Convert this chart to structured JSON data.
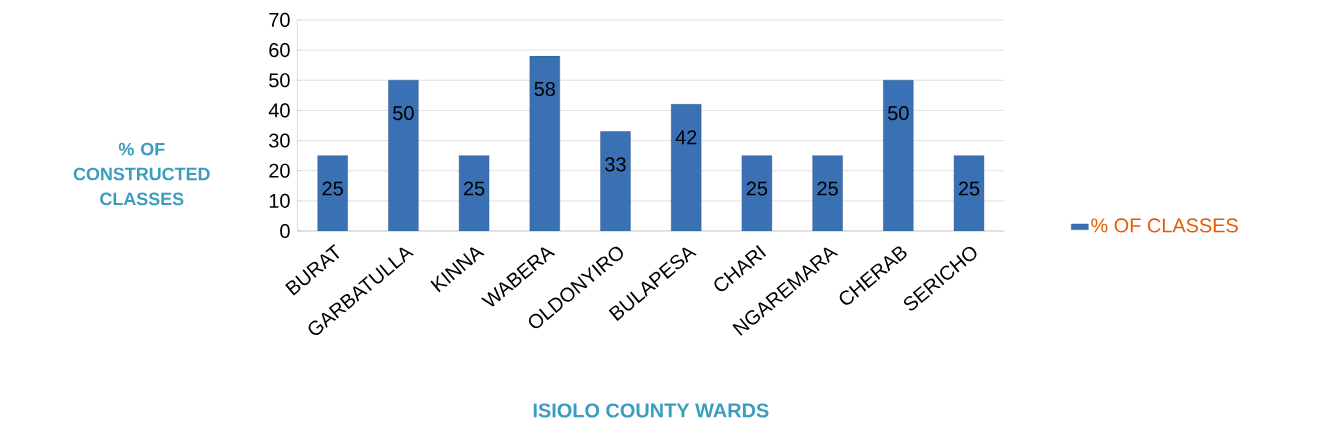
{
  "chart_data": {
    "type": "bar",
    "xlabel": "ISIOLO COUNTY WARDS",
    "ylabel": "% OF CONSTRUCTED CLASSES",
    "categories": [
      "BURAT",
      "GARBATULLA",
      "KINNA",
      "WABERA",
      "OLDONYIRO",
      "BULAPESA",
      "CHARI",
      "NGAREMARA",
      "CHERAB",
      "SERICHO"
    ],
    "series": [
      {
        "name": "% OF CLASSES",
        "color": "#3a70b4",
        "values": [
          25,
          50,
          25,
          58,
          33,
          42,
          25,
          25,
          50,
          25
        ]
      }
    ],
    "ylim": [
      0,
      70
    ],
    "yticks": [
      0,
      10,
      20,
      30,
      40,
      50,
      60,
      70
    ],
    "grid": "y",
    "legend": "right",
    "data_labels": true
  }
}
